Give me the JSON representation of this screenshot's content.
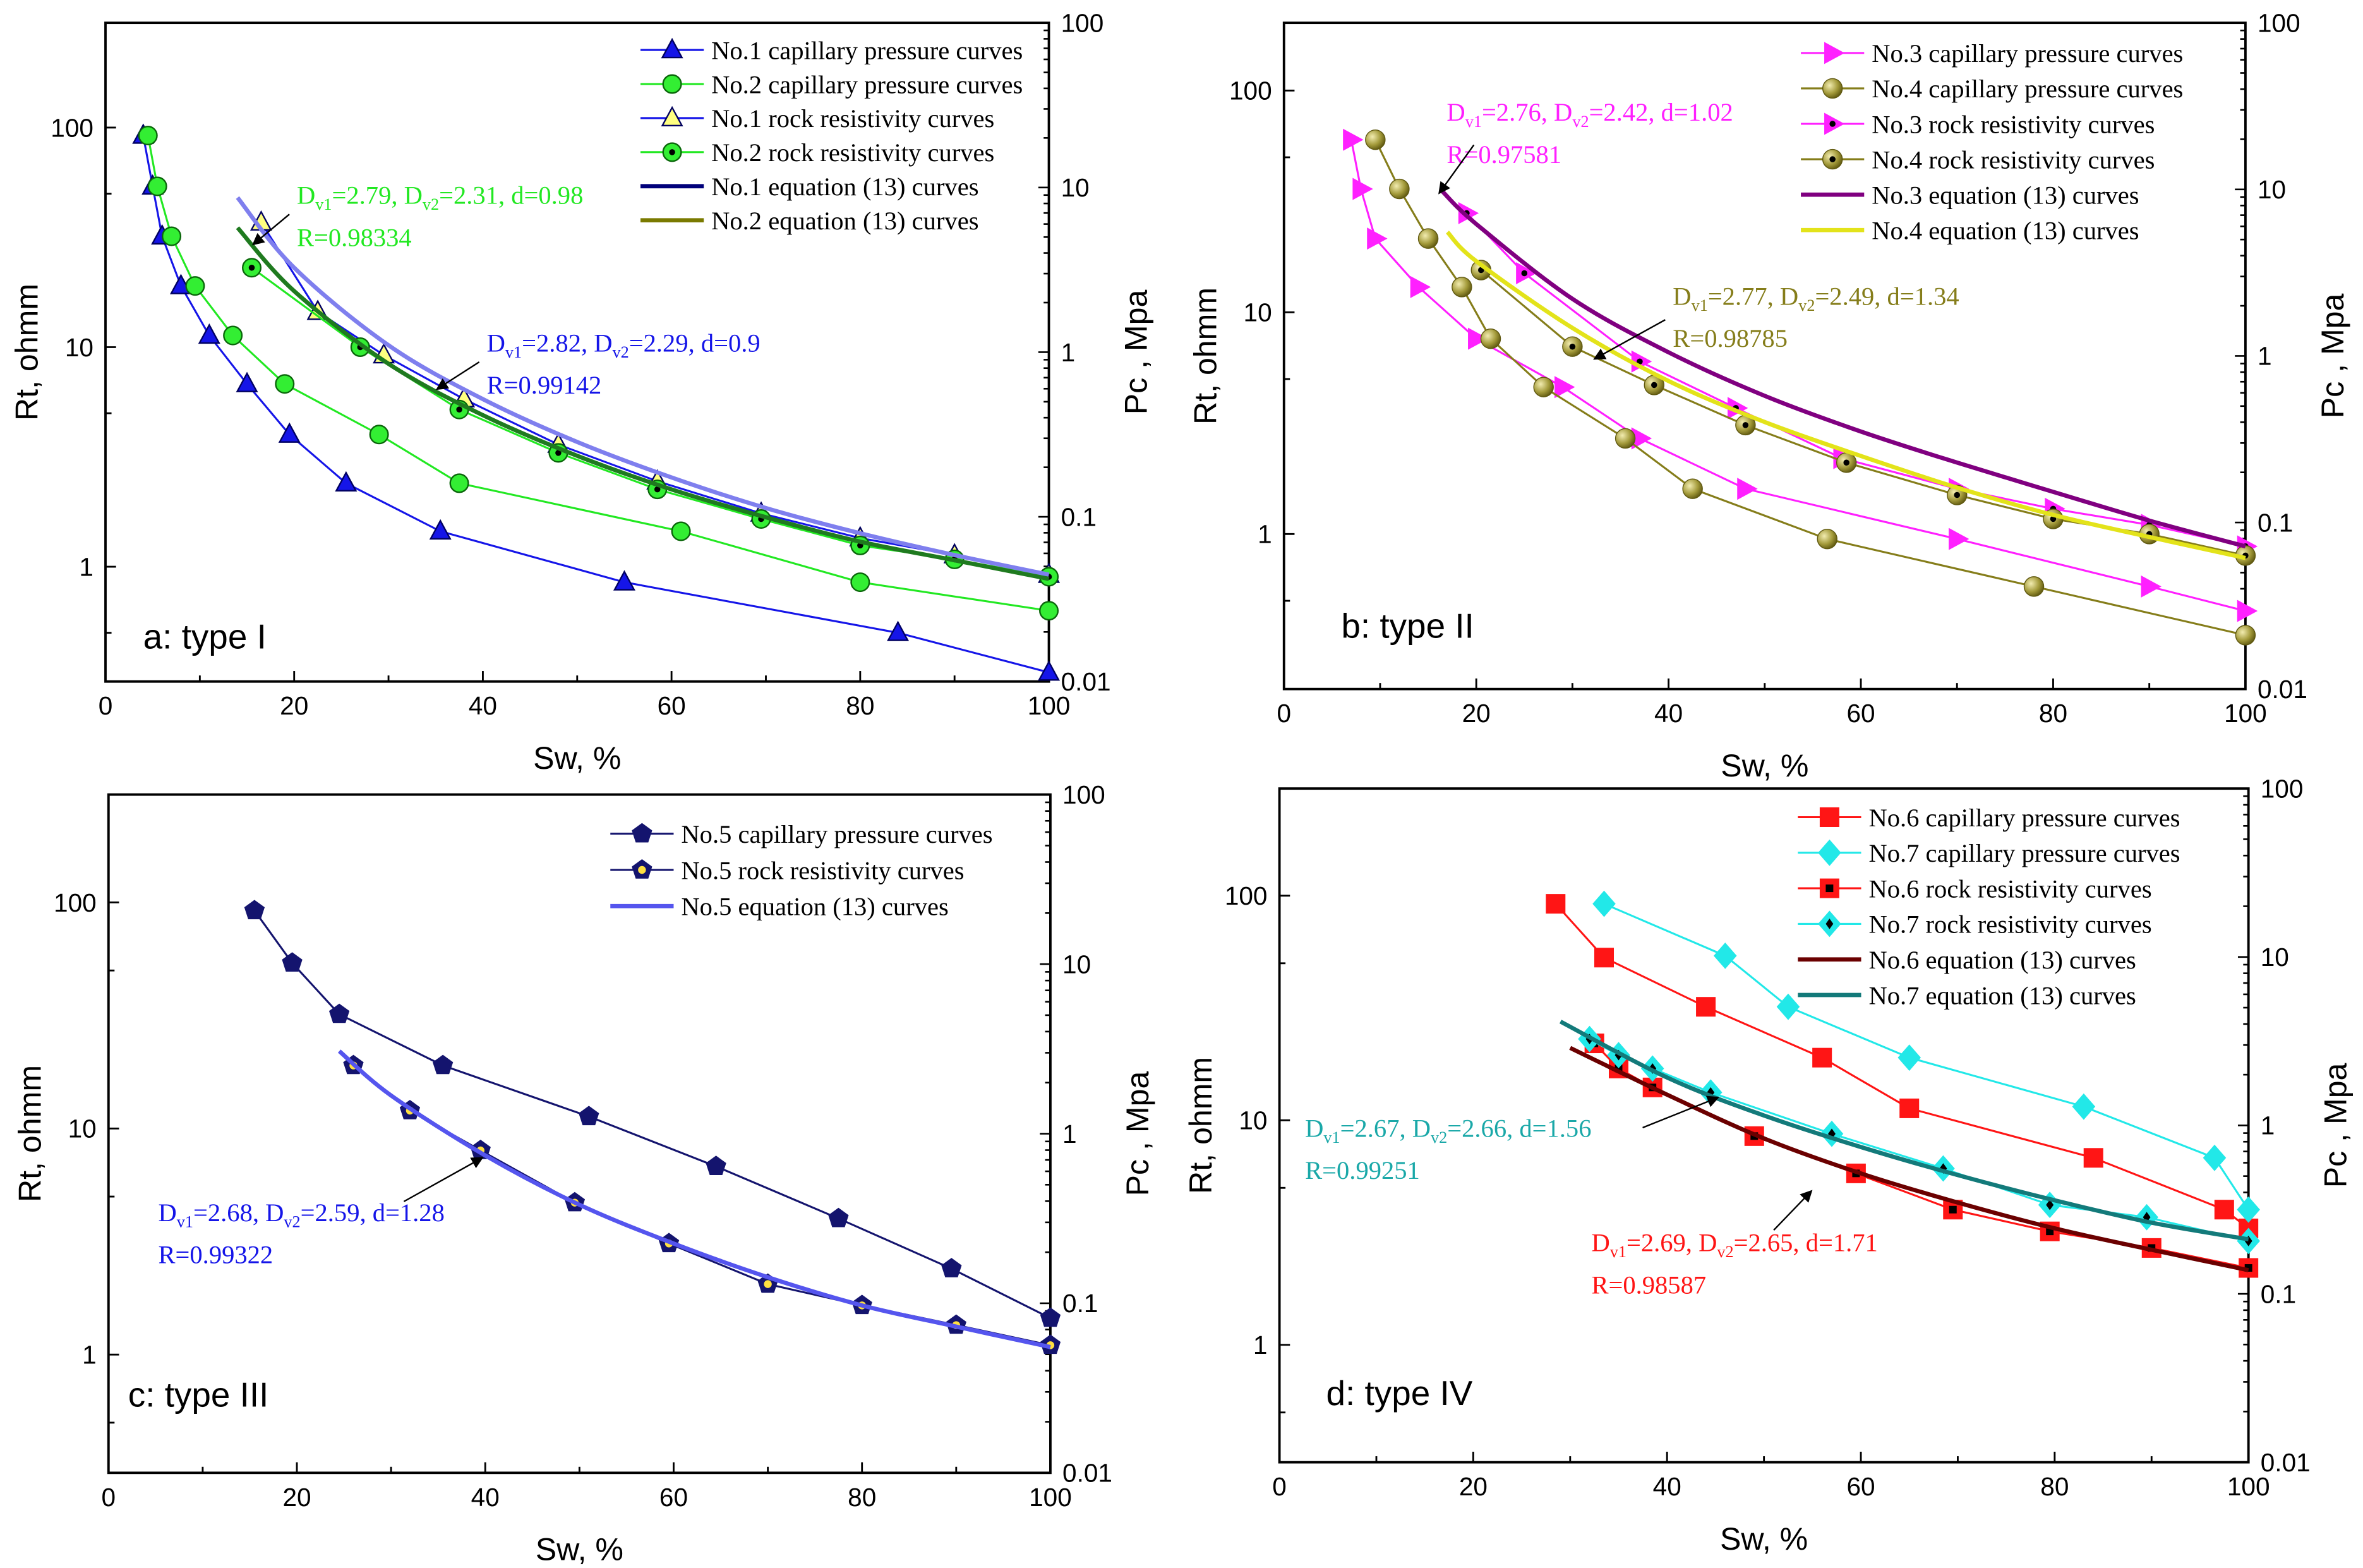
{
  "chart_data": [
    {
      "type": "line",
      "panel_label": "a: type I",
      "xlabel": "Sw, %",
      "ylabel": "Rt, ohmm",
      "y2label": "Pc , Mpa",
      "xlim": [
        0,
        100
      ],
      "ylim": [
        0.3,
        300
      ],
      "y2lim": [
        0.01,
        100
      ],
      "yscale": "log",
      "xticks": [
        "0",
        "20",
        "40",
        "60",
        "80",
        "100"
      ],
      "yticks": [
        "1",
        "10",
        "100"
      ],
      "y2ticks": [
        "0.01",
        "0.1",
        "1",
        "10",
        "100"
      ],
      "legend_position": "top-right",
      "series": [
        {
          "name": "No.1 capillary pressure curves",
          "marker": "triangle",
          "color": "#1515e8",
          "fill": "#1515e8",
          "x": [
            4,
            5,
            6,
            8,
            11,
            15,
            19.5,
            25.5,
            35.5,
            55,
            84,
            100
          ],
          "y": [
            92,
            54,
            32,
            19,
            11.3,
            6.8,
            4.0,
            2.4,
            1.45,
            0.85,
            0.5,
            0.33
          ]
        },
        {
          "name": "No.2 capillary pressure curves",
          "marker": "circle",
          "color": "#22e822",
          "fill": "#33ee33",
          "x": [
            4.5,
            5.5,
            7,
            9.5,
            13.5,
            19,
            29,
            37.5,
            61,
            80,
            100
          ],
          "y": [
            92,
            54,
            32,
            19,
            11.3,
            6.8,
            4.0,
            2.4,
            1.45,
            0.85,
            0.63
          ]
        },
        {
          "name": "No.1 rock resistivity curves",
          "marker": "triangle-open",
          "color": "#1515e8",
          "fill": "#ffff80",
          "x": [
            16.5,
            22.5,
            29.5,
            38,
            48,
            58.5,
            69.5,
            80,
            90,
            100
          ],
          "y": [
            37,
            14.5,
            9.2,
            5.8,
            3.6,
            2.45,
            1.75,
            1.35,
            1.13,
            0.92
          ]
        },
        {
          "name": "No.2 rock resistivity curves",
          "marker": "circle-dot",
          "color": "#22e822",
          "fill": "#33ee33",
          "x": [
            15.5,
            27,
            37.5,
            48,
            58.5,
            69.5,
            80,
            90,
            100
          ],
          "y": [
            23,
            10,
            5.2,
            3.3,
            2.25,
            1.65,
            1.25,
            1.08,
            0.9
          ]
        },
        {
          "name": "No.1 equation (13) curves",
          "marker": "none",
          "color": "#7f7fee",
          "legend_color": "#00007a",
          "x": [
            14,
            20,
            30,
            40,
            50,
            60,
            70,
            80,
            90,
            100
          ],
          "y": [
            48,
            23,
            10.2,
            5.8,
            3.7,
            2.55,
            1.85,
            1.42,
            1.13,
            0.92
          ]
        },
        {
          "name": "No.2 equation (13) curves",
          "marker": "none",
          "color": "#1f7a1f",
          "legend_color": "#7a7a00",
          "x": [
            14,
            20,
            30,
            40,
            50,
            60,
            70,
            80,
            90,
            100
          ],
          "y": [
            35,
            18,
            8.4,
            4.9,
            3.2,
            2.25,
            1.68,
            1.3,
            1.07,
            0.88
          ]
        }
      ],
      "annotations": [
        {
          "color": "#22e822",
          "parts": [
            "D",
            "v1",
            "=2.79, D",
            "v2",
            "=2.31, d=0.98"
          ],
          "r": "R=0.98334"
        },
        {
          "color": "#1515e8",
          "parts": [
            "D",
            "v1",
            "=2.82, D",
            "v2",
            "=2.29, d=0.9"
          ],
          "r": "R=0.99142"
        }
      ]
    },
    {
      "type": "line",
      "panel_label": "b: type II",
      "xlabel": "Sw, %",
      "ylabel": "Rt, ohmm",
      "y2label": "Pc , Mpa",
      "xlim": [
        0,
        100
      ],
      "ylim": [
        0.2,
        202
      ],
      "y2lim": [
        0.01,
        100
      ],
      "yscale": "log",
      "xticks": [
        "0",
        "20",
        "40",
        "60",
        "80",
        "100"
      ],
      "yticks": [
        "1",
        "10",
        "100"
      ],
      "y2ticks": [
        "0.01",
        "0.1",
        "1",
        "10",
        "100"
      ],
      "legend_position": "top-right",
      "series": [
        {
          "name": "No.3 capillary pressure curves",
          "marker": "triangle-right",
          "color": "#ff20ff",
          "fill": "#ff20ff",
          "x": [
            7,
            8,
            9.5,
            14,
            20,
            29,
            37,
            48,
            70,
            90,
            100
          ],
          "y": [
            60,
            36,
            21.5,
            13,
            7.6,
            4.6,
            2.7,
            1.6,
            0.95,
            0.58,
            0.45
          ]
        },
        {
          "name": "No.4 capillary pressure curves",
          "marker": "sphere",
          "color": "#857d1a",
          "fill": "#a39a3a",
          "x": [
            9.5,
            12,
            15,
            18.5,
            21.5,
            27,
            35.5,
            42.5,
            56.5,
            78,
            100
          ],
          "y": [
            60,
            36,
            21.5,
            13,
            7.6,
            4.6,
            2.7,
            1.6,
            0.95,
            0.58,
            0.35
          ]
        },
        {
          "name": "No.3 rock resistivity curves",
          "marker": "triangle-right-dot",
          "color": "#ff20ff",
          "fill": "#ff20ff",
          "x": [
            19,
            25,
            37,
            47,
            58,
            70,
            80,
            90,
            100
          ],
          "y": [
            28,
            15,
            6,
            3.7,
            2.2,
            1.6,
            1.3,
            1.1,
            0.88
          ]
        },
        {
          "name": "No.4 rock resistivity curves",
          "marker": "sphere-dot",
          "color": "#857d1a",
          "fill": "#a39a3a",
          "x": [
            20.5,
            30,
            38.5,
            48,
            58.5,
            70,
            80,
            90,
            100
          ],
          "y": [
            15.5,
            7,
            4.7,
            3.1,
            2.1,
            1.5,
            1.17,
            1.0,
            0.8
          ]
        },
        {
          "name": "No.3 equation (13) curves",
          "marker": "none",
          "color": "#800080",
          "x": [
            16.5,
            20,
            30,
            40,
            50,
            60,
            70,
            80,
            90,
            100
          ],
          "y": [
            35,
            25,
            11.5,
            6.6,
            4.2,
            2.9,
            2.1,
            1.55,
            1.15,
            0.88
          ]
        },
        {
          "name": "No.4 equation (13) curves",
          "marker": "none",
          "color": "#e3e31a",
          "x": [
            17,
            20,
            30,
            40,
            50,
            60,
            70,
            80,
            90,
            100
          ],
          "y": [
            23,
            17,
            8.5,
            4.9,
            3.2,
            2.25,
            1.62,
            1.22,
            0.97,
            0.78
          ]
        }
      ],
      "annotations": [
        {
          "color": "#ff20ff",
          "parts": [
            "D",
            "v1",
            "=2.76, D",
            "v2",
            "=2.42, d=1.02"
          ],
          "r": "R=0.97581"
        },
        {
          "color": "#857d1a",
          "parts": [
            "D",
            "v1",
            "=2.77, D",
            "v2",
            "=2.49, d=1.34"
          ],
          "r": "R=0.98785"
        }
      ]
    },
    {
      "type": "line",
      "panel_label": "c: type III",
      "xlabel": "Sw, %",
      "ylabel": "Rt, ohmm",
      "y2label": "Pc , Mpa",
      "xlim": [
        0,
        100
      ],
      "ylim": [
        0.3,
        300
      ],
      "y2lim": [
        0.01,
        100
      ],
      "yscale": "log",
      "xticks": [
        "0",
        "20",
        "40",
        "60",
        "80",
        "100"
      ],
      "yticks": [
        "1",
        "10",
        "100"
      ],
      "y2ticks": [
        "0.01",
        "0.1",
        "1",
        "10",
        "100"
      ],
      "legend_position": "top-right",
      "series": [
        {
          "name": "No.5 capillary pressure curves",
          "marker": "pentagon",
          "color": "#14146e",
          "fill": "#14146e",
          "x": [
            15.5,
            19.5,
            24.5,
            35.5,
            51,
            64.5,
            77.5,
            89.5,
            100
          ],
          "y": [
            92,
            54,
            32,
            19,
            11.3,
            6.8,
            4.0,
            2.4,
            1.45
          ]
        },
        {
          "name": "No.5 rock resistivity curves",
          "marker": "pentagon-dot",
          "color": "#14146e",
          "fill": "#14146e",
          "x": [
            26,
            32,
            39.5,
            49.5,
            59.5,
            70,
            80,
            90,
            100
          ],
          "y": [
            19,
            12,
            8,
            4.7,
            3.1,
            2.05,
            1.65,
            1.35,
            1.1
          ]
        },
        {
          "name": "No.5 equation (13) curves",
          "marker": "none",
          "color": "#5555ee",
          "x": [
            24.5,
            30,
            40,
            50,
            60,
            70,
            80,
            90,
            100
          ],
          "y": [
            22,
            14,
            7.6,
            4.6,
            3.1,
            2.2,
            1.65,
            1.33,
            1.08
          ]
        }
      ],
      "annotations": [
        {
          "color": "#1515e8",
          "parts": [
            "D",
            "v1",
            "=2.68, D",
            "v2",
            "=2.59, d=1.28"
          ],
          "r": "R=0.99322"
        }
      ]
    },
    {
      "type": "line",
      "panel_label": "d: type IV",
      "xlabel": "Sw, %",
      "ylabel": "Rt, ohmm",
      "y2label": "Pc , Mpa",
      "xlim": [
        0,
        100
      ],
      "ylim": [
        0.3,
        300
      ],
      "y2lim": [
        0.01,
        100
      ],
      "yscale": "log",
      "xticks": [
        "0",
        "20",
        "40",
        "60",
        "80",
        "100"
      ],
      "yticks": [
        "1",
        "10",
        "100"
      ],
      "y2ticks": [
        "0.01",
        "0.1",
        "1",
        "10",
        "100"
      ],
      "legend_position": "top-right",
      "series": [
        {
          "name": "No.6 capillary pressure curves",
          "marker": "square",
          "color": "#ff1515",
          "fill": "#ff1515",
          "x": [
            28.5,
            33.5,
            44,
            56,
            65,
            84,
            97.5,
            100
          ],
          "y": [
            92,
            53,
            32,
            19,
            11.3,
            6.8,
            4.0,
            3.3
          ]
        },
        {
          "name": "No.7 capillary pressure curves",
          "marker": "diamond",
          "color": "#22e8e8",
          "fill": "#22e8e8",
          "x": [
            33.5,
            46,
            52.5,
            65,
            83,
            96.5,
            100
          ],
          "y": [
            92,
            54,
            32,
            19,
            11.5,
            6.8,
            4.0
          ]
        },
        {
          "name": "No.6 rock resistivity curves",
          "marker": "square-dot",
          "color": "#ff1515",
          "fill": "#ff1515",
          "x": [
            32.5,
            35,
            38.5,
            49,
            59.5,
            69.5,
            79.5,
            90,
            100
          ],
          "y": [
            22,
            17,
            14,
            8.5,
            5.8,
            4.0,
            3.2,
            2.7,
            2.2
          ]
        },
        {
          "name": "No.7 rock resistivity curves",
          "marker": "diamond-dot",
          "color": "#22e8e8",
          "fill": "#22e8e8",
          "x": [
            32,
            35,
            38.5,
            44.5,
            57,
            68.5,
            79.5,
            89.5,
            100
          ],
          "y": [
            23,
            19.5,
            17,
            13.3,
            8.7,
            6.1,
            4.2,
            3.7,
            2.9
          ]
        },
        {
          "name": "No.6 equation (13) curves",
          "marker": "none",
          "color": "#6b0000",
          "x": [
            30,
            40,
            50,
            60,
            70,
            80,
            90,
            100
          ],
          "y": [
            21,
            13,
            8.3,
            5.8,
            4.3,
            3.3,
            2.65,
            2.15
          ]
        },
        {
          "name": "No.7 equation (13) curves",
          "marker": "none",
          "color": "#137a7a",
          "x": [
            29,
            40,
            50,
            60,
            70,
            80,
            90,
            100
          ],
          "y": [
            27.5,
            15.5,
            10.5,
            7.6,
            5.7,
            4.4,
            3.5,
            2.95
          ]
        }
      ],
      "annotations": [
        {
          "color": "#1aa8a8",
          "parts": [
            "D",
            "v1",
            "=2.67, D",
            "v2",
            "=2.66, d=1.56"
          ],
          "r": "R=0.99251"
        },
        {
          "color": "#ff1515",
          "parts": [
            "D",
            "v1",
            "=2.69, D",
            "v2",
            "=2.65, d=1.71"
          ],
          "r": "R=0.98587"
        }
      ]
    }
  ]
}
